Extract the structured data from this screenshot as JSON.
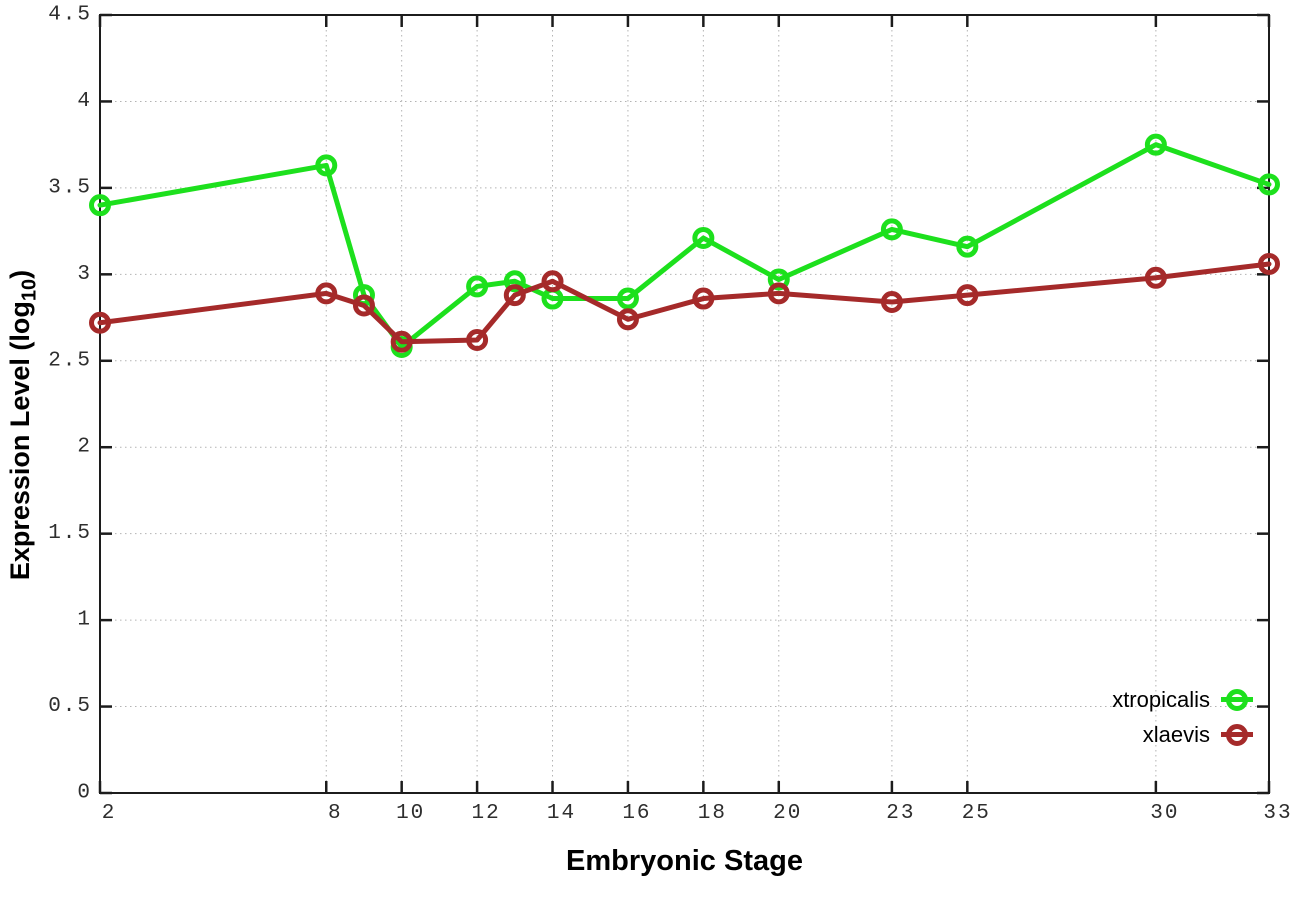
{
  "chart_data": {
    "type": "line",
    "title": "",
    "xlabel": "Embryonic Stage",
    "ylabel": "Expression Level (log10)",
    "x": [
      2,
      8,
      9,
      10,
      12,
      13,
      14,
      16,
      18,
      20,
      23,
      25,
      30,
      33
    ],
    "series": [
      {
        "name": "xtropicalis",
        "color": "#1de01d",
        "marker": "open-circle",
        "values": [
          3.4,
          3.63,
          2.88,
          2.58,
          2.93,
          2.96,
          2.86,
          2.86,
          3.21,
          2.97,
          3.26,
          3.16,
          3.75,
          3.52
        ]
      },
      {
        "name": "xlaevis",
        "color": "#a52a2a",
        "marker": "open-circle",
        "values": [
          2.72,
          2.89,
          2.82,
          2.61,
          2.62,
          2.88,
          2.96,
          2.74,
          2.86,
          2.89,
          2.84,
          2.88,
          2.98,
          3.06
        ]
      }
    ],
    "xlim": [
      2,
      33
    ],
    "ylim": [
      0,
      4.5
    ],
    "xticks": [
      2,
      8,
      10,
      12,
      14,
      16,
      18,
      20,
      23,
      25,
      30,
      33
    ],
    "yticks": [
      0,
      0.5,
      1,
      1.5,
      2,
      2.5,
      3,
      3.5,
      4,
      4.5
    ],
    "grid": "dotted",
    "legend_position": "bottom-right"
  },
  "labels": {
    "xlabel": "Embryonic Stage",
    "ylabel_prefix": "Expression Level (log",
    "ylabel_sub": "10",
    "ylabel_suffix": ")"
  },
  "legend": {
    "items": [
      {
        "label": "xtropicalis",
        "color": "#1de01d"
      },
      {
        "label": "xlaevis",
        "color": "#a52a2a"
      }
    ]
  },
  "colors": {
    "background": "#ffffff",
    "border": "#1c1c1c",
    "grid": "#b3b3b3",
    "tick_text": "#2e2e2e"
  }
}
